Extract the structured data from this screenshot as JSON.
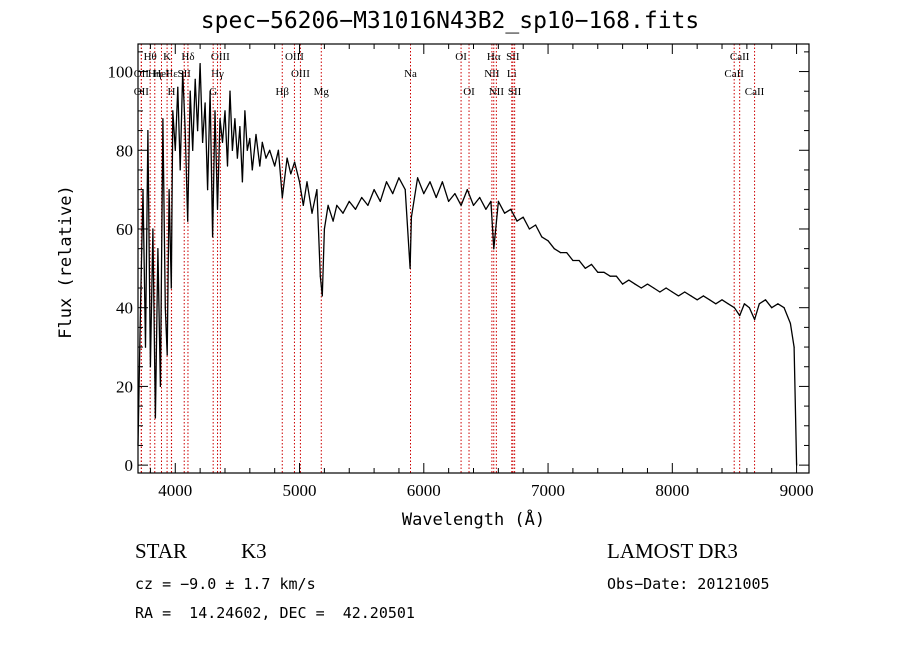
{
  "chart_data": {
    "type": "line",
    "title": "spec−56206−M31016N43B2_sp10−168.fits",
    "xlabel": "Wavelength (Å)",
    "ylabel": "Flux (relative)",
    "xlim": [
      3700,
      9100
    ],
    "ylim": [
      -2,
      107
    ],
    "xticks": [
      4000,
      5000,
      6000,
      7000,
      8000,
      9000
    ],
    "yticks": [
      0,
      20,
      40,
      60,
      80,
      100
    ],
    "grid": false,
    "series": [
      {
        "name": "spectrum",
        "points": [
          [
            3700,
            5
          ],
          [
            3720,
            40
          ],
          [
            3740,
            70
          ],
          [
            3760,
            30
          ],
          [
            3780,
            85
          ],
          [
            3800,
            25
          ],
          [
            3820,
            60
          ],
          [
            3840,
            12
          ],
          [
            3860,
            55
          ],
          [
            3880,
            20
          ],
          [
            3900,
            88
          ],
          [
            3920,
            40
          ],
          [
            3935,
            28
          ],
          [
            3950,
            70
          ],
          [
            3968,
            45
          ],
          [
            3980,
            90
          ],
          [
            4000,
            80
          ],
          [
            4020,
            96
          ],
          [
            4040,
            75
          ],
          [
            4060,
            100
          ],
          [
            4080,
            85
          ],
          [
            4100,
            62
          ],
          [
            4120,
            95
          ],
          [
            4140,
            80
          ],
          [
            4160,
            98
          ],
          [
            4180,
            85
          ],
          [
            4200,
            102
          ],
          [
            4220,
            82
          ],
          [
            4240,
            92
          ],
          [
            4260,
            70
          ],
          [
            4280,
            95
          ],
          [
            4300,
            58
          ],
          [
            4320,
            90
          ],
          [
            4340,
            65
          ],
          [
            4360,
            88
          ],
          [
            4380,
            82
          ],
          [
            4400,
            90
          ],
          [
            4420,
            76
          ],
          [
            4440,
            95
          ],
          [
            4460,
            80
          ],
          [
            4480,
            88
          ],
          [
            4500,
            78
          ],
          [
            4520,
            86
          ],
          [
            4540,
            72
          ],
          [
            4560,
            90
          ],
          [
            4580,
            80
          ],
          [
            4600,
            83
          ],
          [
            4620,
            75
          ],
          [
            4650,
            84
          ],
          [
            4680,
            76
          ],
          [
            4700,
            82
          ],
          [
            4730,
            78
          ],
          [
            4760,
            80
          ],
          [
            4800,
            76
          ],
          [
            4830,
            80
          ],
          [
            4861,
            68
          ],
          [
            4900,
            78
          ],
          [
            4930,
            74
          ],
          [
            4960,
            77
          ],
          [
            5000,
            72
          ],
          [
            5030,
            66
          ],
          [
            5060,
            72
          ],
          [
            5100,
            64
          ],
          [
            5140,
            70
          ],
          [
            5167,
            48
          ],
          [
            5183,
            43
          ],
          [
            5200,
            60
          ],
          [
            5230,
            66
          ],
          [
            5270,
            62
          ],
          [
            5300,
            66
          ],
          [
            5350,
            64
          ],
          [
            5400,
            67
          ],
          [
            5450,
            65
          ],
          [
            5500,
            68
          ],
          [
            5550,
            66
          ],
          [
            5600,
            70
          ],
          [
            5650,
            67
          ],
          [
            5700,
            72
          ],
          [
            5750,
            69
          ],
          [
            5800,
            73
          ],
          [
            5850,
            70
          ],
          [
            5890,
            50
          ],
          [
            5900,
            63
          ],
          [
            5950,
            73
          ],
          [
            6000,
            69
          ],
          [
            6050,
            72
          ],
          [
            6100,
            68
          ],
          [
            6150,
            72
          ],
          [
            6200,
            67
          ],
          [
            6250,
            69
          ],
          [
            6300,
            66
          ],
          [
            6350,
            70
          ],
          [
            6400,
            66
          ],
          [
            6450,
            68
          ],
          [
            6500,
            65
          ],
          [
            6540,
            67
          ],
          [
            6563,
            55
          ],
          [
            6600,
            67
          ],
          [
            6650,
            64
          ],
          [
            6700,
            65
          ],
          [
            6750,
            62
          ],
          [
            6800,
            63
          ],
          [
            6850,
            60
          ],
          [
            6900,
            61
          ],
          [
            6950,
            58
          ],
          [
            7000,
            57
          ],
          [
            7050,
            55
          ],
          [
            7100,
            54
          ],
          [
            7150,
            54
          ],
          [
            7200,
            52
          ],
          [
            7250,
            52
          ],
          [
            7300,
            50
          ],
          [
            7350,
            51
          ],
          [
            7400,
            49
          ],
          [
            7450,
            49
          ],
          [
            7500,
            48
          ],
          [
            7550,
            48
          ],
          [
            7600,
            46
          ],
          [
            7650,
            47
          ],
          [
            7700,
            46
          ],
          [
            7750,
            45
          ],
          [
            7800,
            46
          ],
          [
            7850,
            45
          ],
          [
            7900,
            44
          ],
          [
            7950,
            45
          ],
          [
            8000,
            44
          ],
          [
            8050,
            43
          ],
          [
            8100,
            44
          ],
          [
            8150,
            43
          ],
          [
            8200,
            42
          ],
          [
            8250,
            43
          ],
          [
            8300,
            42
          ],
          [
            8350,
            41
          ],
          [
            8400,
            42
          ],
          [
            8450,
            41
          ],
          [
            8500,
            40
          ],
          [
            8542,
            38
          ],
          [
            8580,
            41
          ],
          [
            8620,
            40
          ],
          [
            8662,
            37
          ],
          [
            8700,
            41
          ],
          [
            8750,
            42
          ],
          [
            8800,
            40
          ],
          [
            8850,
            41
          ],
          [
            8900,
            40
          ],
          [
            8950,
            36
          ],
          [
            8980,
            30
          ],
          [
            9000,
            0
          ]
        ]
      }
    ],
    "annotations": [
      {
        "label": "Hθ",
        "x": 3798,
        "row": 0
      },
      {
        "label": "OII",
        "x": 3727,
        "row": 1
      },
      {
        "label": "OII",
        "x": 3727,
        "row": 2
      },
      {
        "label": "Hη",
        "x": 3835,
        "row": 1
      },
      {
        "label": "Hε",
        "x": 3970,
        "row": 1
      },
      {
        "label": "HeI",
        "x": 3889,
        "row": 1
      },
      {
        "label": "K",
        "x": 3934,
        "row": 0
      },
      {
        "label": "H",
        "x": 3969,
        "row": 2
      },
      {
        "label": "SII",
        "x": 4072,
        "row": 1
      },
      {
        "label": "Hδ",
        "x": 4102,
        "row": 0
      },
      {
        "label": "OIII",
        "x": 4363,
        "row": 0
      },
      {
        "label": "Hγ",
        "x": 4340,
        "row": 1
      },
      {
        "label": "G",
        "x": 4305,
        "row": 2
      },
      {
        "label": "Hβ",
        "x": 4861,
        "row": 2
      },
      {
        "label": "OIII",
        "x": 4959,
        "row": 0
      },
      {
        "label": "OIII",
        "x": 5007,
        "row": 1
      },
      {
        "label": "Mg",
        "x": 5175,
        "row": 2
      },
      {
        "label": "Na",
        "x": 5893,
        "row": 1
      },
      {
        "label": "OI",
        "x": 6300,
        "row": 0
      },
      {
        "label": "OI",
        "x": 6364,
        "row": 2
      },
      {
        "label": "Hα",
        "x": 6563,
        "row": 0
      },
      {
        "label": "NII",
        "x": 6548,
        "row": 1
      },
      {
        "label": "NII",
        "x": 6584,
        "row": 2
      },
      {
        "label": "SII",
        "x": 6717,
        "row": 0
      },
      {
        "label": "Li",
        "x": 6708,
        "row": 1
      },
      {
        "label": "SII",
        "x": 6731,
        "row": 2
      },
      {
        "label": "CaII",
        "x": 8498,
        "row": 1
      },
      {
        "label": "CaII",
        "x": 8542,
        "row": 0
      },
      {
        "label": "CaII",
        "x": 8662,
        "row": 2
      }
    ]
  },
  "info": {
    "object_class": "STAR",
    "subclass": "K3",
    "redshift": "cz = −9.0 ± 1.7 km/s",
    "coords": "RA =  14.24602, DEC =  42.20501",
    "survey": "LAMOST DR3",
    "obs_date": "Obs−Date: 20121005"
  },
  "colors": {
    "spectrum": "#000000",
    "line_markers": "#cc0000",
    "axes": "#000000",
    "background": "#ffffff"
  }
}
